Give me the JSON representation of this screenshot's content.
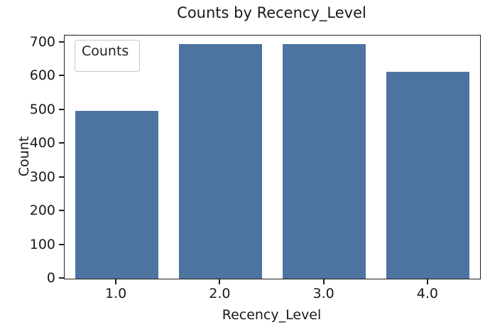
{
  "figure": {
    "background": "#ffffff"
  },
  "chart_data": {
    "type": "bar",
    "title": "Counts by Recency_Level",
    "xlabel": "Recency_Level",
    "ylabel": "Count",
    "categories": [
      "1.0",
      "2.0",
      "3.0",
      "4.0"
    ],
    "values": [
      497,
      695,
      695,
      613
    ],
    "ylim": [
      0,
      721
    ],
    "ytick_interval": 100,
    "ytick_labels": [
      "0",
      "100",
      "200",
      "300",
      "400",
      "500",
      "600",
      "700"
    ],
    "legend": {
      "labels": [
        "Counts"
      ],
      "position": "upper-left"
    },
    "bar_color": "#4d73a1",
    "bar_width_fraction": 0.8,
    "grid": false,
    "spine_color": "#1f1f1f"
  }
}
